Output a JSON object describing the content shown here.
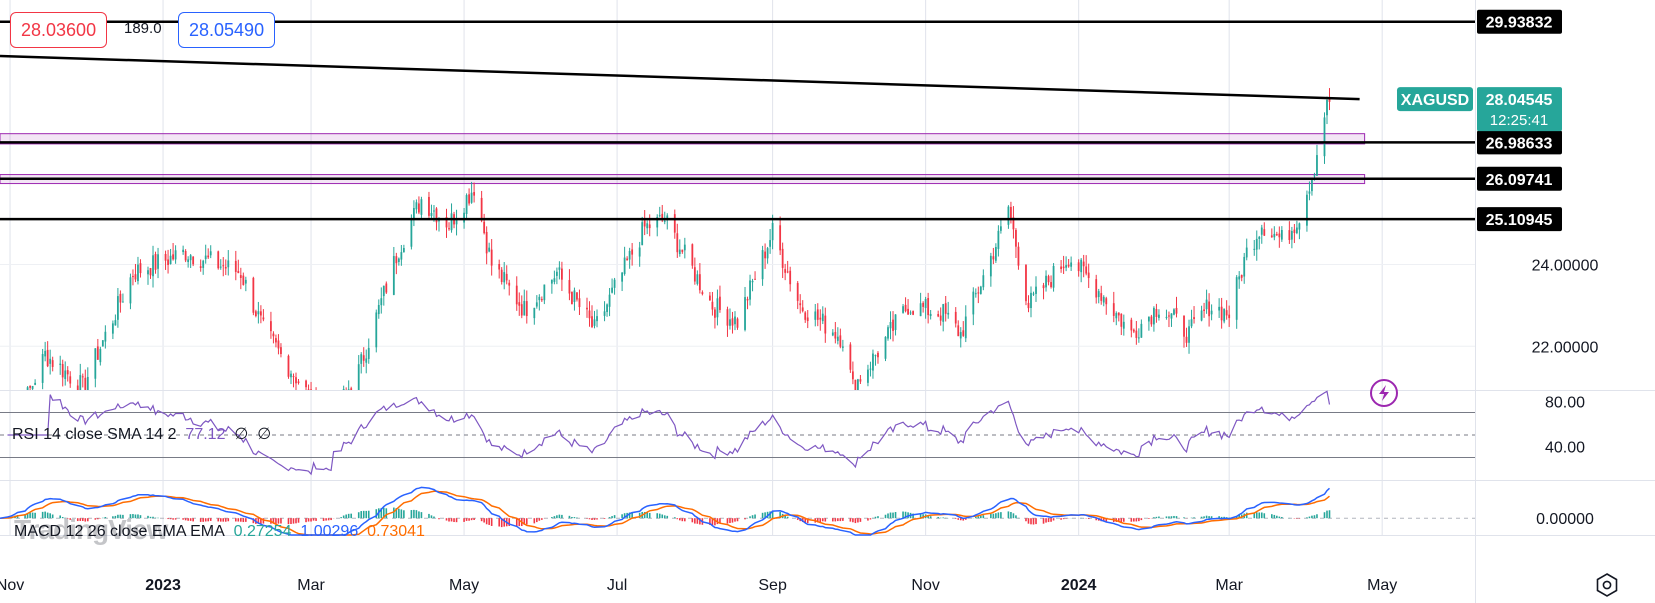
{
  "header": {
    "bid": "28.03600",
    "spread": "189.0",
    "ask": "28.05490"
  },
  "chart_data": {
    "type": "candlestick",
    "symbol": "XAGUSD",
    "last_price": "28.04545",
    "countdown": "12:25:41",
    "price_axis": {
      "min": 20.93,
      "max": 30.47,
      "tick_labels": [
        "24.00000",
        "22.00000"
      ]
    },
    "time_axis": {
      "start": "2022-10-28",
      "end": "2024-06-07",
      "labels": [
        {
          "text": "Nov",
          "date": "2022-11-01",
          "bold": false
        },
        {
          "text": "2023",
          "date": "2023-01-01",
          "bold": true
        },
        {
          "text": "Mar",
          "date": "2023-03-01",
          "bold": false
        },
        {
          "text": "May",
          "date": "2023-05-01",
          "bold": false
        },
        {
          "text": "Jul",
          "date": "2023-07-01",
          "bold": false
        },
        {
          "text": "Sep",
          "date": "2023-09-01",
          "bold": false
        },
        {
          "text": "Nov",
          "date": "2023-11-01",
          "bold": false
        },
        {
          "text": "2024",
          "date": "2024-01-01",
          "bold": true
        },
        {
          "text": "Mar",
          "date": "2024-03-01",
          "bold": false
        },
        {
          "text": "May",
          "date": "2024-05-01",
          "bold": false
        }
      ]
    },
    "price_path_anchors": [
      [
        "2022-10-28",
        19.2
      ],
      [
        "2022-11-15",
        21.8
      ],
      [
        "2022-11-30",
        21.0
      ],
      [
        "2022-12-20",
        23.8
      ],
      [
        "2023-01-10",
        24.3
      ],
      [
        "2023-02-01",
        23.8
      ],
      [
        "2023-02-10",
        22.4
      ],
      [
        "2023-03-08",
        20.1
      ],
      [
        "2023-03-20",
        21.4
      ],
      [
        "2023-04-05",
        24.4
      ],
      [
        "2023-04-14",
        25.6
      ],
      [
        "2023-04-25",
        25.0
      ],
      [
        "2023-05-05",
        25.9
      ],
      [
        "2023-05-12",
        24.0
      ],
      [
        "2023-05-25",
        22.9
      ],
      [
        "2023-06-07",
        23.8
      ],
      [
        "2023-06-22",
        22.4
      ],
      [
        "2023-07-12",
        24.9
      ],
      [
        "2023-07-20",
        25.1
      ],
      [
        "2023-08-08",
        23.0
      ],
      [
        "2023-08-18",
        22.6
      ],
      [
        "2023-09-01",
        24.8
      ],
      [
        "2023-09-12",
        23.0
      ],
      [
        "2023-09-29",
        22.2
      ],
      [
        "2023-10-03",
        21.0
      ],
      [
        "2023-10-10",
        21.6
      ],
      [
        "2023-10-25",
        23.0
      ],
      [
        "2023-11-08",
        22.8
      ],
      [
        "2023-11-15",
        22.3
      ],
      [
        "2023-12-01",
        24.8
      ],
      [
        "2023-12-04",
        25.4
      ],
      [
        "2023-12-12",
        23.0
      ],
      [
        "2023-12-28",
        24.2
      ],
      [
        "2024-01-10",
        23.3
      ],
      [
        "2024-01-22",
        22.3
      ],
      [
        "2024-02-02",
        23.0
      ],
      [
        "2024-02-14",
        22.3
      ],
      [
        "2024-02-22",
        23.0
      ],
      [
        "2024-03-01",
        22.8
      ],
      [
        "2024-03-08",
        24.3
      ],
      [
        "2024-03-14",
        25.0
      ],
      [
        "2024-03-22",
        24.6
      ],
      [
        "2024-03-26",
        24.9
      ],
      [
        "2024-03-29",
        25.2
      ],
      [
        "2024-04-04",
        26.4
      ],
      [
        "2024-04-08",
        27.7
      ],
      [
        "2024-04-10",
        28.0
      ]
    ],
    "horizontal_levels": [
      {
        "label": "29.93832",
        "value": 29.93832
      },
      {
        "label": "26.98633",
        "value": 26.98633
      },
      {
        "label": "26.09741",
        "value": 26.09741
      },
      {
        "label": "25.10945",
        "value": 25.10945
      }
    ],
    "trendline": {
      "start": [
        "2022-10-28",
        29.1
      ],
      "end": [
        "2024-04-22",
        28.04545
      ]
    },
    "zones": [
      {
        "top": 27.2,
        "bottom": 26.95,
        "end": "2024-04-24"
      },
      {
        "top": 26.2,
        "bottom": 25.98,
        "end": "2024-04-24"
      }
    ],
    "colors": {
      "up": "#26a69a",
      "down": "#f23645",
      "zone": "#9c27b0",
      "line": "#000000",
      "rsi": "#7e57c2",
      "macd": "#2962ff",
      "signal": "#ff6d00",
      "symbol_tag": "#26a69a"
    }
  },
  "rsi": {
    "legend": "RSI 14 close SMA 14 2",
    "value": "77.12",
    "na1": "∅",
    "na2": "∅",
    "tick_labels": [
      "80.00",
      "40.00"
    ],
    "bands": [
      70,
      50,
      30
    ],
    "range": [
      10,
      90
    ],
    "last": 77.12
  },
  "macd": {
    "legend": "MACD 12 26 close EMA EMA",
    "hist": "0.27254",
    "macd": "1.00296",
    "signal": "0.73041",
    "tick_labels": [
      "0.00000"
    ],
    "range": [
      -0.55,
      1.25
    ]
  },
  "watermark": "TradingView"
}
